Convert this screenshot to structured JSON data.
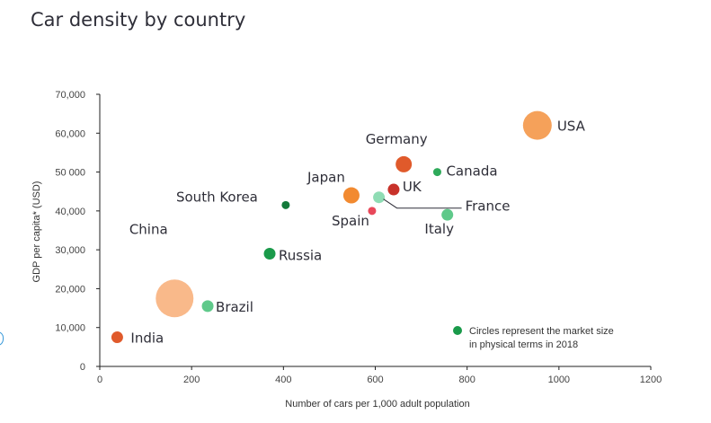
{
  "chart_data": {
    "type": "scatter",
    "title": "Car density by country",
    "xlabel": "Number of cars per 1,000 adult population",
    "ylabel": "GDP per capita* (USD)",
    "xlim": [
      0,
      1200
    ],
    "ylim": [
      0,
      70000
    ],
    "x_ticks": [
      "0",
      "200",
      "400",
      "600",
      "800",
      "1000",
      "1200"
    ],
    "y_ticks": [
      "0",
      "10,000",
      "20,000",
      "30,000",
      "40,000",
      "50 000",
      "60,000",
      "70,000"
    ],
    "grid": false,
    "note": [
      "Circles represent the market size",
      "in physical terms in 2018"
    ],
    "note_color": "#1a9a4a",
    "points": [
      {
        "label": "India",
        "x": 38,
        "y": 7500,
        "size": "small",
        "color": "#e05a2b"
      },
      {
        "label": "China",
        "x": 163,
        "y": 17500,
        "size": "very large",
        "color": "#f9b98a"
      },
      {
        "label": "Brazil",
        "x": 235,
        "y": 15500,
        "size": "small",
        "color": "#5fc98a"
      },
      {
        "label": "Russia",
        "x": 370,
        "y": 29000,
        "size": "small",
        "color": "#1a9a4a"
      },
      {
        "label": "South Korea",
        "x": 405,
        "y": 41500,
        "size": "tiny",
        "color": "#137a3a"
      },
      {
        "label": "Japan",
        "x": 548,
        "y": 44000,
        "size": "medium",
        "color": "#f28a30"
      },
      {
        "label": "Spain",
        "x": 593,
        "y": 40000,
        "size": "tiny",
        "color": "#e8485a"
      },
      {
        "label": "France",
        "x": 608,
        "y": 43500,
        "size": "small",
        "color": "#8fdcb4"
      },
      {
        "label": "UK",
        "x": 640,
        "y": 45500,
        "size": "small",
        "color": "#c8322a"
      },
      {
        "label": "Germany",
        "x": 662,
        "y": 52000,
        "size": "medium",
        "color": "#e05a2b"
      },
      {
        "label": "Canada",
        "x": 735,
        "y": 50000,
        "size": "tiny",
        "color": "#2eaa5a"
      },
      {
        "label": "Italy",
        "x": 757,
        "y": 39000,
        "size": "small",
        "color": "#5fc98a"
      },
      {
        "label": "USA",
        "x": 953,
        "y": 62000,
        "size": "large",
        "color": "#f5a15a"
      }
    ]
  }
}
